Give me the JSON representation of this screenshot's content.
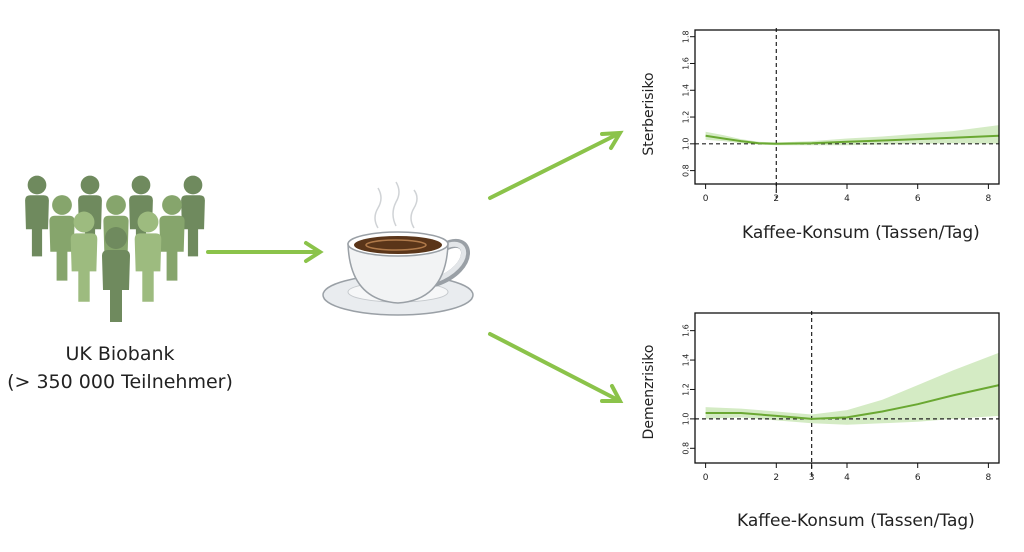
{
  "population": {
    "line1": "UK Biobank",
    "line2": "(> 350 000 Teilnehmer)",
    "icon": "people-group-icon"
  },
  "cup": {
    "icon": "coffee-cup-icon"
  },
  "colors": {
    "arrow": "#8bc34a",
    "curve": "#6aa832",
    "band": "#d4ebc4",
    "people_dark": "#6f8a5e",
    "people_light": "#9dbb7f"
  },
  "chart_data": [
    {
      "type": "line",
      "ylabel": "Sterberisiko",
      "xlabel": "Kaffee-Konsum (Tassen/Tag)",
      "xlim": [
        -0.3,
        8.3
      ],
      "ylim": [
        0.7,
        1.85
      ],
      "xticks": [
        "0",
        "2",
        "4",
        "6",
        "8"
      ],
      "xtick_values": [
        0,
        2,
        4,
        6,
        8
      ],
      "yticks": [
        "0.8",
        "1.0",
        "1.2",
        "1.4",
        "1.6",
        "1.8"
      ],
      "ytick_values": [
        0.8,
        1.0,
        1.2,
        1.4,
        1.6,
        1.8
      ],
      "reference_x": 2,
      "reference_y": 1.0,
      "series": [
        {
          "x": [
            0,
            0.5,
            1,
            1.5,
            2,
            3,
            4,
            5,
            6,
            7,
            8.3
          ],
          "y": [
            1.06,
            1.04,
            1.02,
            1.005,
            1.0,
            1.005,
            1.015,
            1.025,
            1.035,
            1.045,
            1.06
          ],
          "lower": [
            1.03,
            1.02,
            1.005,
            0.995,
            0.99,
            0.99,
            0.99,
            0.995,
            1.0,
            1.005,
            1.0
          ],
          "upper": [
            1.09,
            1.065,
            1.035,
            1.015,
            1.01,
            1.02,
            1.04,
            1.055,
            1.075,
            1.095,
            1.14
          ]
        }
      ]
    },
    {
      "type": "line",
      "ylabel": "Demenzrisiko",
      "xlabel": "Kaffee-Konsum (Tassen/Tag)",
      "xlim": [
        -0.3,
        8.3
      ],
      "ylim": [
        0.7,
        1.72
      ],
      "xticks": [
        "0",
        "2",
        "3",
        "4",
        "6",
        "8"
      ],
      "xtick_values": [
        0,
        2,
        3,
        4,
        6,
        8
      ],
      "yticks": [
        "0.8",
        "1.0",
        "1.2",
        "1.4",
        "1.6"
      ],
      "ytick_values": [
        0.8,
        1.0,
        1.2,
        1.4,
        1.6
      ],
      "reference_x": 3,
      "reference_y": 1.0,
      "series": [
        {
          "x": [
            0,
            1,
            2,
            3,
            4,
            5,
            6,
            7,
            8.3
          ],
          "y": [
            1.04,
            1.04,
            1.02,
            1.0,
            1.01,
            1.05,
            1.1,
            1.16,
            1.23
          ],
          "lower": [
            1.0,
            1.01,
            0.99,
            0.97,
            0.96,
            0.97,
            0.98,
            1.0,
            1.02
          ],
          "upper": [
            1.08,
            1.07,
            1.05,
            1.03,
            1.06,
            1.13,
            1.23,
            1.33,
            1.45
          ]
        }
      ]
    }
  ]
}
